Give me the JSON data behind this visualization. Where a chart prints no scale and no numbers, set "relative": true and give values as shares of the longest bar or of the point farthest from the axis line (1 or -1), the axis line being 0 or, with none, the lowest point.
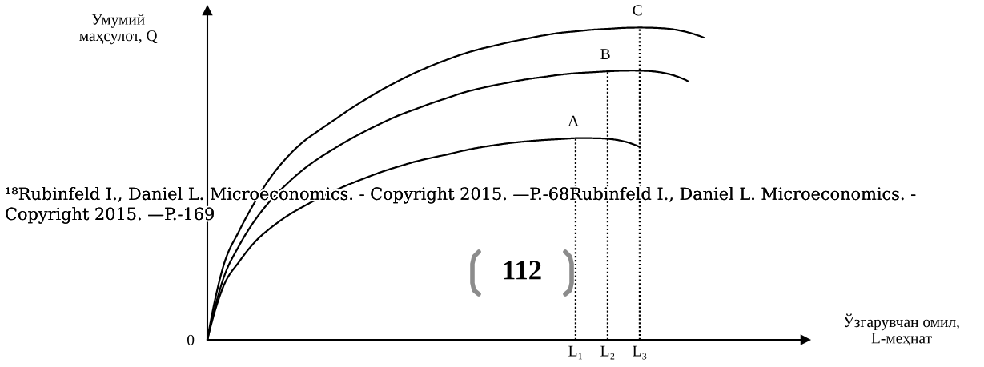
{
  "chart_data": {
    "type": "line",
    "relative": true,
    "tick_labels": "x",
    "ylabel": "Умумий\nмаҳсулот, Q",
    "categories": [
      null,
      null,
      null,
      null,
      null,
      null,
      null,
      null,
      null,
      null,
      null,
      null,
      null,
      null,
      null,
      null,
      null,
      null,
      null,
      null,
      null,
      null,
      null,
      "L₁",
      null,
      "L₂",
      null,
      "L₃",
      null,
      null,
      null,
      null
    ],
    "series": [
      {
        "color": "#000000",
        "values": [
          0,
          0.171,
          0.251,
          0.315,
          0.36,
          0.397,
          0.427,
          0.454,
          0.479,
          0.501,
          0.521,
          0.54,
          0.556,
          0.571,
          0.583,
          0.594,
          0.606,
          0.616,
          0.624,
          0.631,
          0.636,
          0.64,
          0.643,
          0.646,
          0.646,
          0.644,
          0.636,
          0.618,
          null,
          null,
          null,
          null
        ]
      },
      {
        "color": "#000000",
        "values": [
          0,
          0.196,
          0.303,
          0.385,
          0.449,
          0.501,
          0.546,
          0.583,
          0.615,
          0.645,
          0.672,
          0.697,
          0.72,
          0.739,
          0.758,
          0.775,
          0.792,
          0.805,
          0.816,
          0.826,
          0.835,
          0.842,
          0.849,
          0.854,
          0.857,
          0.86,
          0.862,
          0.862,
          0.859,
          0.849,
          0.829,
          null
        ]
      },
      {
        "color": "#000000",
        "values": [
          0,
          0.236,
          0.35,
          0.444,
          0.524,
          0.586,
          0.635,
          0.672,
          0.707,
          0.742,
          0.774,
          0.804,
          0.831,
          0.856,
          0.878,
          0.898,
          0.916,
          0.931,
          0.943,
          0.955,
          0.965,
          0.975,
          0.983,
          0.988,
          0.993,
          0.996,
          0.999,
          1.0,
          0.999,
          0.995,
          0.985,
          0.968
        ]
      }
    ],
    "ref_lines": [
      {
        "axis": "x",
        "value": "L₁",
        "color": "#000000",
        "line_style": "dotted"
      },
      {
        "axis": "x",
        "value": "L₂",
        "color": "#000000",
        "line_style": "dotted"
      },
      {
        "axis": "x",
        "value": "L₃",
        "color": "#000000",
        "line_style": "dotted"
      }
    ],
    "annotations": [
      {
        "text": "A",
        "x": "L₁",
        "y": 0.646
      },
      {
        "text": "B",
        "x": "L₂",
        "y": 0.86
      },
      {
        "text": "C",
        "x": "L₃",
        "y": 1.0
      },
      "0",
      "Ўзгарувчан омил,\nL-меҳнат",
      "¹⁸Rubinfeld I., Daniel L. Microeconomics. - Copyright 2015. —P.-68Rubinfeld I., Daniel L. Microeconomics. - Copyright 2015. —P.-169",
      "112"
    ]
  }
}
